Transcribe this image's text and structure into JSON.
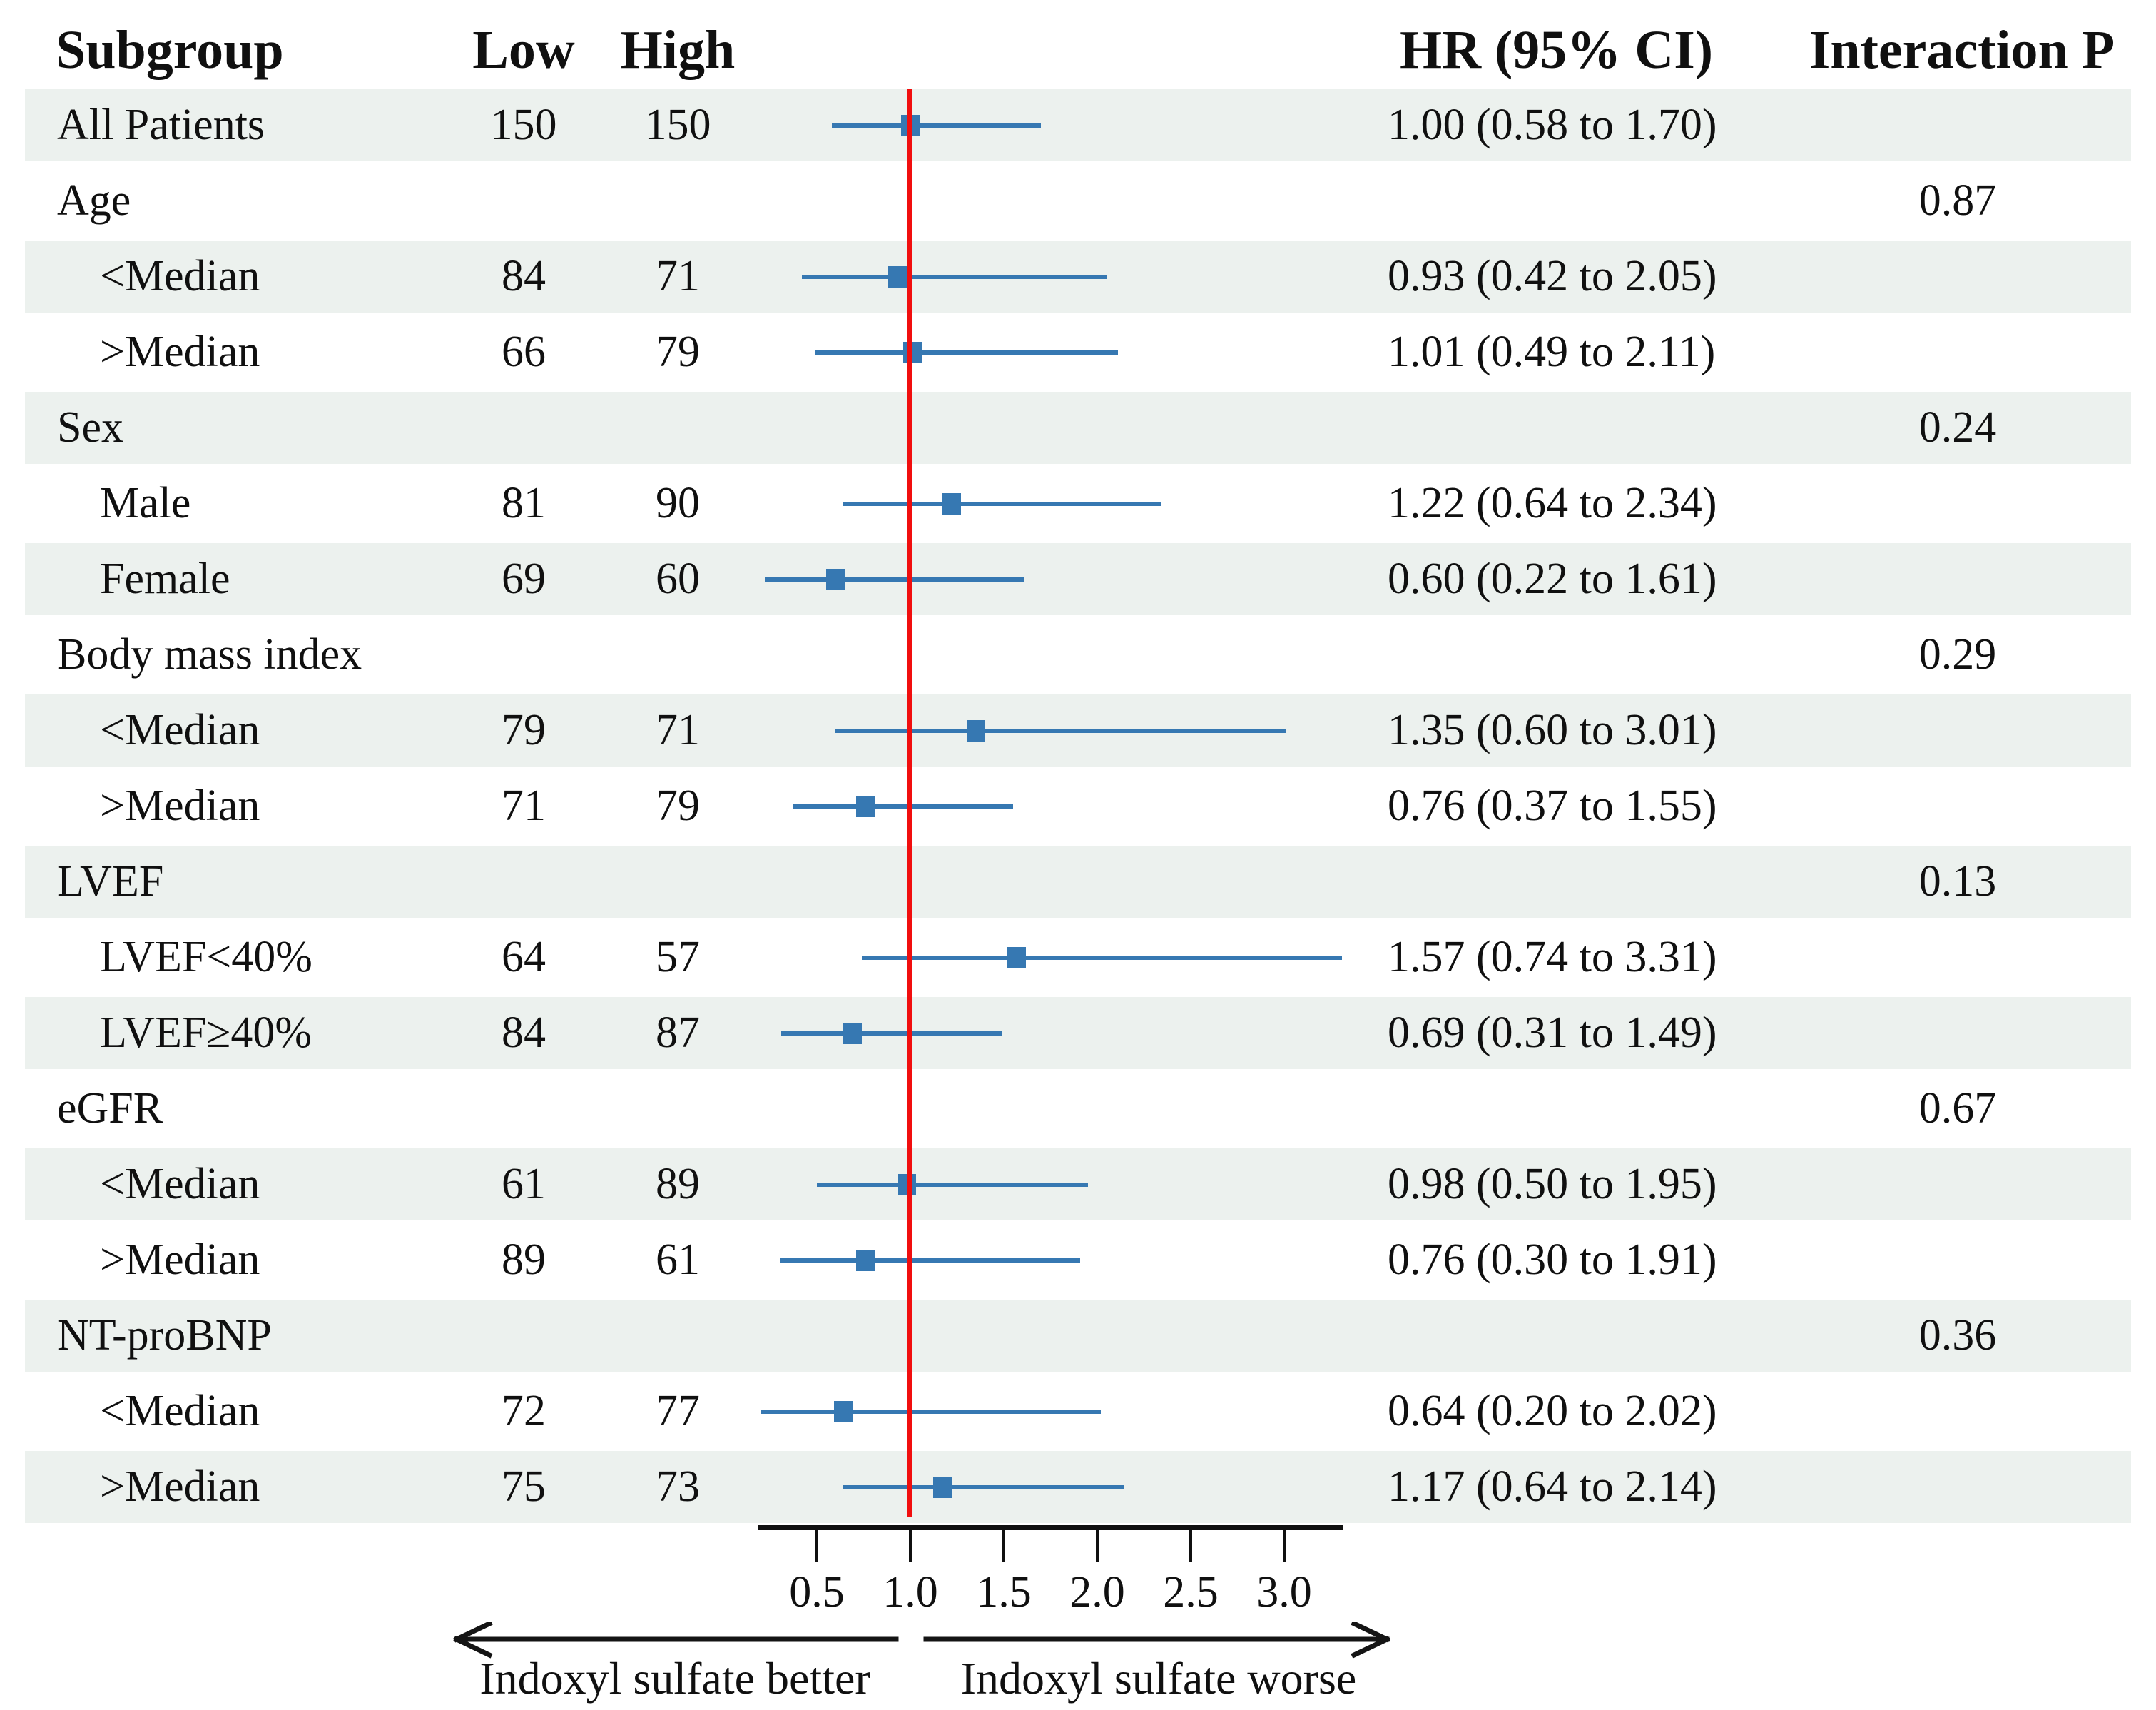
{
  "figure": {
    "headers": {
      "subgroup": "Subgroup",
      "low": "Low",
      "high": "High",
      "hr_ci": "HR (95% CI)",
      "interaction_p": "Interaction P"
    },
    "axis": {
      "tick_labels": [
        "0.5",
        "1.0",
        "1.5",
        "2.0",
        "2.5",
        "3.0"
      ]
    },
    "direction_labels": {
      "left": "Indoxyl sulfate better",
      "right": "Indoxyl sulfate worse"
    },
    "rows": [
      {
        "label": "All Patients",
        "indent": false,
        "shaded": true,
        "low": "150",
        "high": "150",
        "hr_text": "1.00 (0.58 to 1.70)",
        "hr": 1.0,
        "lo": 0.58,
        "hi": 1.7
      },
      {
        "label": "Age",
        "indent": false,
        "shaded": false,
        "p": "0.87"
      },
      {
        "label": "<Median",
        "indent": true,
        "shaded": true,
        "low": "84",
        "high": "71",
        "hr_text": "0.93 (0.42 to 2.05)",
        "hr": 0.93,
        "lo": 0.42,
        "hi": 2.05
      },
      {
        "label": ">Median",
        "indent": true,
        "shaded": false,
        "low": "66",
        "high": "79",
        "hr_text": "1.01 (0.49 to 2.11)",
        "hr": 1.01,
        "lo": 0.49,
        "hi": 2.11
      },
      {
        "label": "Sex",
        "indent": false,
        "shaded": true,
        "p": "0.24"
      },
      {
        "label": "Male",
        "indent": true,
        "shaded": false,
        "low": "81",
        "high": "90",
        "hr_text": "1.22 (0.64 to 2.34)",
        "hr": 1.22,
        "lo": 0.64,
        "hi": 2.34
      },
      {
        "label": "Female",
        "indent": true,
        "shaded": true,
        "low": "69",
        "high": "60",
        "hr_text": "0.60 (0.22 to 1.61)",
        "hr": 0.6,
        "lo": 0.22,
        "hi": 1.61
      },
      {
        "label": "Body mass index",
        "indent": false,
        "shaded": false,
        "p": "0.29"
      },
      {
        "label": "<Median",
        "indent": true,
        "shaded": true,
        "low": "79",
        "high": "71",
        "hr_text": "1.35 (0.60 to 3.01)",
        "hr": 1.35,
        "lo": 0.6,
        "hi": 3.01
      },
      {
        "label": ">Median",
        "indent": true,
        "shaded": false,
        "low": "71",
        "high": "79",
        "hr_text": "0.76 (0.37 to 1.55)",
        "hr": 0.76,
        "lo": 0.37,
        "hi": 1.55
      },
      {
        "label": "LVEF",
        "indent": false,
        "shaded": true,
        "p": "0.13"
      },
      {
        "label": "LVEF<40%",
        "indent": true,
        "shaded": false,
        "low": "64",
        "high": "57",
        "hr_text": "1.57 (0.74 to 3.31)",
        "hr": 1.57,
        "lo": 0.74,
        "hi": 3.31
      },
      {
        "label": "LVEF≥40%",
        "indent": true,
        "shaded": true,
        "low": "84",
        "high": "87",
        "hr_text": "0.69 (0.31 to 1.49)",
        "hr": 0.69,
        "lo": 0.31,
        "hi": 1.49
      },
      {
        "label": "eGFR",
        "indent": false,
        "shaded": false,
        "p": "0.67"
      },
      {
        "label": "<Median",
        "indent": true,
        "shaded": true,
        "low": "61",
        "high": "89",
        "hr_text": "0.98 (0.50 to 1.95)",
        "hr": 0.98,
        "lo": 0.5,
        "hi": 1.95
      },
      {
        "label": ">Median",
        "indent": true,
        "shaded": false,
        "low": "89",
        "high": "61",
        "hr_text": "0.76 (0.30 to 1.91)",
        "hr": 0.76,
        "lo": 0.3,
        "hi": 1.91
      },
      {
        "label": "NT-proBNP",
        "indent": false,
        "shaded": true,
        "p": "0.36"
      },
      {
        "label": "<Median",
        "indent": true,
        "shaded": false,
        "low": "72",
        "high": "77",
        "hr_text": "0.64 (0.20 to 2.02)",
        "hr": 0.64,
        "lo": 0.2,
        "hi": 2.02
      },
      {
        "label": ">Median",
        "indent": true,
        "shaded": true,
        "low": "75",
        "high": "73",
        "hr_text": "1.17 (0.64 to 2.14)",
        "hr": 1.17,
        "lo": 0.64,
        "hi": 2.14
      }
    ]
  },
  "colors": {
    "marker_blue": "#3678b2",
    "ref_line_red": "#f10e0e",
    "row_shade": "#ecf1ee",
    "ink": "#101010"
  },
  "chart_data": {
    "type": "scatter",
    "variant": "forest-plot",
    "title": "",
    "xlabel": "",
    "ylabel": "",
    "x_ticks": [
      0.5,
      1.0,
      1.5,
      2.0,
      2.5,
      3.0
    ],
    "xlim": [
      0.2,
      3.35
    ],
    "reference_line_x": 1.0,
    "grid": false,
    "legend": "none",
    "direction_annotations": {
      "left_of_reference": "Indoxyl sulfate better",
      "right_of_reference": "Indoxyl sulfate worse"
    },
    "columns": [
      "Subgroup",
      "Low",
      "High",
      "HR (95% CI)",
      "Interaction P"
    ],
    "rows": [
      {
        "group": "",
        "label": "All Patients",
        "n_low": 150,
        "n_high": 150,
        "hr": 1.0,
        "ci_low": 0.58,
        "ci_high": 1.7
      },
      {
        "group": "Age",
        "label": "Age",
        "interaction_p": 0.87
      },
      {
        "group": "Age",
        "label": "<Median",
        "n_low": 84,
        "n_high": 71,
        "hr": 0.93,
        "ci_low": 0.42,
        "ci_high": 2.05
      },
      {
        "group": "Age",
        "label": ">Median",
        "n_low": 66,
        "n_high": 79,
        "hr": 1.01,
        "ci_low": 0.49,
        "ci_high": 2.11
      },
      {
        "group": "Sex",
        "label": "Sex",
        "interaction_p": 0.24
      },
      {
        "group": "Sex",
        "label": "Male",
        "n_low": 81,
        "n_high": 90,
        "hr": 1.22,
        "ci_low": 0.64,
        "ci_high": 2.34
      },
      {
        "group": "Sex",
        "label": "Female",
        "n_low": 69,
        "n_high": 60,
        "hr": 0.6,
        "ci_low": 0.22,
        "ci_high": 1.61
      },
      {
        "group": "Body mass index",
        "label": "Body mass index",
        "interaction_p": 0.29
      },
      {
        "group": "Body mass index",
        "label": "<Median",
        "n_low": 79,
        "n_high": 71,
        "hr": 1.35,
        "ci_low": 0.6,
        "ci_high": 3.01
      },
      {
        "group": "Body mass index",
        "label": ">Median",
        "n_low": 71,
        "n_high": 79,
        "hr": 0.76,
        "ci_low": 0.37,
        "ci_high": 1.55
      },
      {
        "group": "LVEF",
        "label": "LVEF",
        "interaction_p": 0.13
      },
      {
        "group": "LVEF",
        "label": "LVEF<40%",
        "n_low": 64,
        "n_high": 57,
        "hr": 1.57,
        "ci_low": 0.74,
        "ci_high": 3.31
      },
      {
        "group": "LVEF",
        "label": "LVEF≥40%",
        "n_low": 84,
        "n_high": 87,
        "hr": 0.69,
        "ci_low": 0.31,
        "ci_high": 1.49
      },
      {
        "group": "eGFR",
        "label": "eGFR",
        "interaction_p": 0.67
      },
      {
        "group": "eGFR",
        "label": "<Median",
        "n_low": 61,
        "n_high": 89,
        "hr": 0.98,
        "ci_low": 0.5,
        "ci_high": 1.95
      },
      {
        "group": "eGFR",
        "label": ">Median",
        "n_low": 89,
        "n_high": 61,
        "hr": 0.76,
        "ci_low": 0.3,
        "ci_high": 1.91
      },
      {
        "group": "NT-proBNP",
        "label": "NT-proBNP",
        "interaction_p": 0.36
      },
      {
        "group": "NT-proBNP",
        "label": "<Median",
        "n_low": 72,
        "n_high": 77,
        "hr": 0.64,
        "ci_low": 0.2,
        "ci_high": 2.02
      },
      {
        "group": "NT-proBNP",
        "label": ">Median",
        "n_low": 75,
        "n_high": 73,
        "hr": 1.17,
        "ci_low": 0.64,
        "ci_high": 2.14
      }
    ]
  }
}
